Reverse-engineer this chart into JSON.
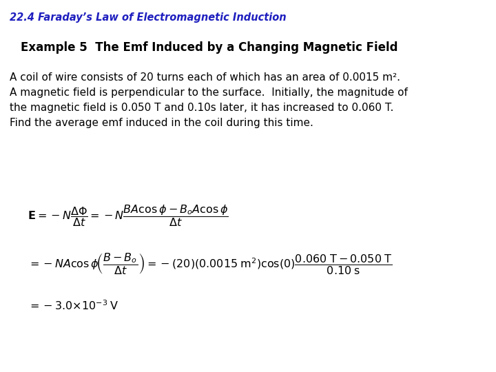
{
  "header": "22.4 Faraday’s Law of Electromagnetic Induction",
  "title": "Example 5  The Emf Induced by a Changing Magnetic Field",
  "paragraph_lines": [
    "A coil of wire consists of 20 turns each of which has an area of 0.0015 m².",
    "A magnetic field is perpendicular to the surface.  Initially, the magnitude of",
    "the magnetic field is 0.050 T and 0.10s later, it has increased to 0.060 T.",
    "Find the average emf induced in the coil during this time."
  ],
  "eq1": "$\\mathbf{E} = -N\\dfrac{\\Delta\\Phi}{\\Delta t} = -N\\dfrac{BA\\cos\\phi - B_o A\\cos\\phi}{\\Delta t}$",
  "eq2": "$= -NA\\cos\\phi\\!\\left(\\dfrac{B - B_o}{\\Delta t}\\right) = -(20)(0.0015\\;\\mathrm{m}^2)\\mathrm{cos}(0)\\dfrac{0.060\\;\\mathrm{T} - 0.050\\;\\mathrm{T}}{0.10\\;\\mathrm{s}}$",
  "eq3": "$= -3.0{\\times}10^{-3}\\;\\mathrm{V}$",
  "bg_color": "#ffffff",
  "text_color": "#000000",
  "header_color": "#1f1fbf",
  "title_color": "#000000",
  "header_fontsize": 10.5,
  "title_fontsize": 12,
  "body_fontsize": 11,
  "eq_fontsize": 11.5
}
